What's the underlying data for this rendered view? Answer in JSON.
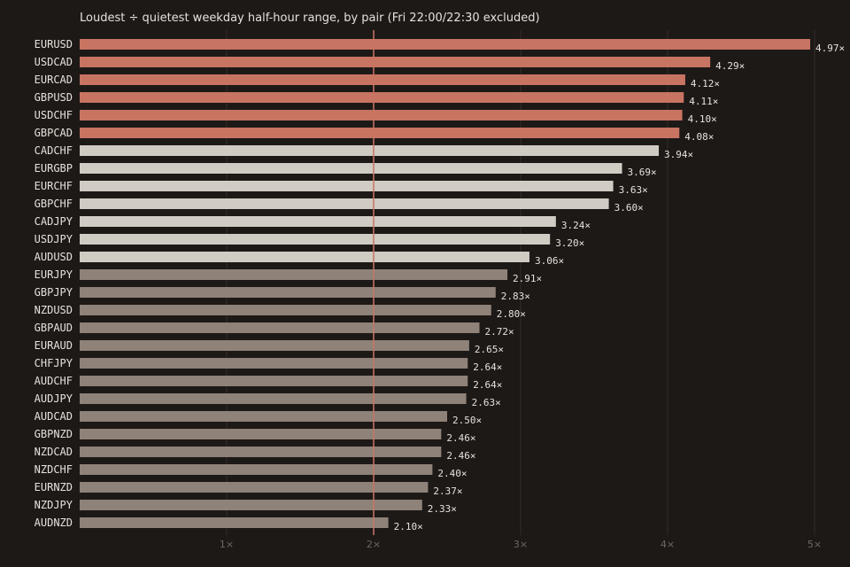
{
  "chart_data": {
    "type": "bar",
    "orientation": "horizontal",
    "title": "Loudest ÷ quietest weekday half-hour range, by pair (Fri 22:00/22:30 excluded)",
    "xlabel": "",
    "ylabel": "",
    "xlim": [
      0,
      5
    ],
    "xticks": [
      1,
      2,
      3,
      4,
      5
    ],
    "xtick_labels": [
      "1×",
      "2×",
      "3×",
      "4×",
      "5×"
    ],
    "reference_line": 2,
    "grid": "vertical",
    "value_suffix": "×",
    "categories": [
      "EURUSD",
      "USDCAD",
      "EURCAD",
      "GBPUSD",
      "USDCHF",
      "GBPCAD",
      "CADCHF",
      "EURGBP",
      "EURCHF",
      "GBPCHF",
      "CADJPY",
      "USDJPY",
      "AUDUSD",
      "EURJPY",
      "GBPJPY",
      "NZDUSD",
      "GBPAUD",
      "EURAUD",
      "CHFJPY",
      "AUDCHF",
      "AUDJPY",
      "AUDCAD",
      "GBPNZD",
      "NZDCAD",
      "NZDCHF",
      "EURNZD",
      "NZDJPY",
      "AUDNZD"
    ],
    "values": [
      4.97,
      4.29,
      4.12,
      4.11,
      4.1,
      4.08,
      3.94,
      3.69,
      3.63,
      3.6,
      3.24,
      3.2,
      3.06,
      2.91,
      2.83,
      2.8,
      2.72,
      2.65,
      2.64,
      2.64,
      2.63,
      2.5,
      2.46,
      2.46,
      2.4,
      2.37,
      2.33,
      2.1
    ],
    "value_labels": [
      "4.97×",
      "4.29×",
      "4.12×",
      "4.11×",
      "4.10×",
      "4.08×",
      "3.94×",
      "3.69×",
      "3.63×",
      "3.60×",
      "3.24×",
      "3.20×",
      "3.06×",
      "2.91×",
      "2.83×",
      "2.80×",
      "2.72×",
      "2.65×",
      "2.64×",
      "2.64×",
      "2.63×",
      "2.50×",
      "2.46×",
      "2.46×",
      "2.40×",
      "2.37×",
      "2.33×",
      "2.10×"
    ],
    "colors": {
      "high": "#c87462",
      "mid": "#d1ccc3",
      "low": "#8e8279",
      "reference": "#c87462",
      "grid": "#2c2724",
      "background": "#1d1917"
    },
    "color_groups": [
      "high",
      "high",
      "high",
      "high",
      "high",
      "high",
      "mid",
      "mid",
      "mid",
      "mid",
      "mid",
      "mid",
      "mid",
      "low",
      "low",
      "low",
      "low",
      "low",
      "low",
      "low",
      "low",
      "low",
      "low",
      "low",
      "low",
      "low",
      "low",
      "low"
    ]
  }
}
